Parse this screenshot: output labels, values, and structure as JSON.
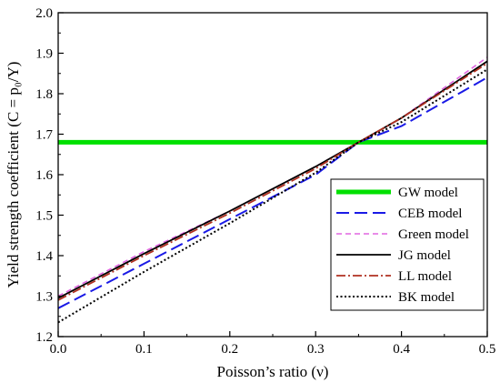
{
  "chart_data": {
    "type": "line",
    "xlabel": "Poisson’s ratio (ν)",
    "ylabel": "Yield strength coefficient (C = p₀/Y)",
    "xlim": [
      0.0,
      0.5
    ],
    "ylim": [
      1.2,
      2.0
    ],
    "x_ticks": [
      "0.0",
      "0.1",
      "0.2",
      "0.3",
      "0.4",
      "0.5"
    ],
    "y_ticks": [
      "1.2",
      "1.3",
      "1.4",
      "1.5",
      "1.6",
      "1.7",
      "1.8",
      "1.9",
      "2.0"
    ],
    "grid": false,
    "legend_position": "bottom-right",
    "series": [
      {
        "name": "GW model",
        "color": "#00e000",
        "style": "solid-thick",
        "x": [
          0.0,
          0.5
        ],
        "y": [
          1.68,
          1.68
        ]
      },
      {
        "name": "CEB model",
        "color": "#1a1ae6",
        "style": "long-dash",
        "x": [
          0.0,
          0.1,
          0.2,
          0.3,
          0.35,
          0.4,
          0.5
        ],
        "y": [
          1.27,
          1.38,
          1.49,
          1.6,
          1.68,
          1.72,
          1.84
        ]
      },
      {
        "name": "Green model",
        "color": "#e066e0",
        "style": "short-dash",
        "x": [
          0.0,
          0.1,
          0.2,
          0.3,
          0.35,
          0.4,
          0.5
        ],
        "y": [
          1.3,
          1.41,
          1.51,
          1.62,
          1.68,
          1.74,
          1.89
        ]
      },
      {
        "name": "JG model",
        "color": "#000000",
        "style": "solid",
        "x": [
          0.0,
          0.1,
          0.2,
          0.3,
          0.35,
          0.4,
          0.5
        ],
        "y": [
          1.295,
          1.405,
          1.51,
          1.62,
          1.68,
          1.74,
          1.88
        ]
      },
      {
        "name": "LL model",
        "color": "#b03020",
        "style": "dash-dot",
        "x": [
          0.0,
          0.1,
          0.2,
          0.3,
          0.35,
          0.4,
          0.5
        ],
        "y": [
          1.29,
          1.4,
          1.505,
          1.615,
          1.68,
          1.74,
          1.875
        ]
      },
      {
        "name": "BK model",
        "color": "#000000",
        "style": "dotted",
        "x": [
          0.0,
          0.1,
          0.2,
          0.3,
          0.35,
          0.4,
          0.5
        ],
        "y": [
          1.235,
          1.36,
          1.48,
          1.605,
          1.68,
          1.73,
          1.86
        ]
      }
    ]
  }
}
